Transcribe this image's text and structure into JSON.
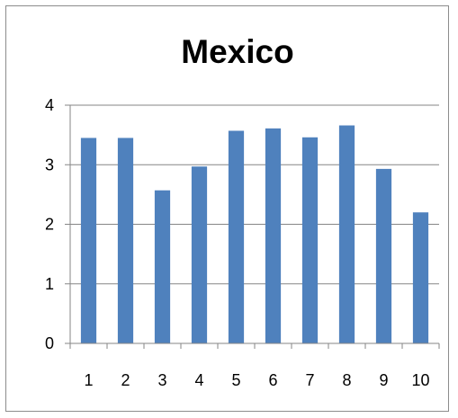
{
  "chart_data": {
    "type": "bar",
    "title": "Mexico",
    "categories": [
      "1",
      "2",
      "3",
      "4",
      "5",
      "6",
      "7",
      "8",
      "9",
      "10"
    ],
    "series": [
      {
        "values": [
          3.45,
          3.45,
          2.57,
          2.97,
          3.57,
          3.61,
          3.46,
          3.66,
          2.93,
          2.2
        ],
        "color": "#4f81bd"
      }
    ],
    "xlabel": "",
    "ylabel": "",
    "ylim": [
      0,
      4
    ],
    "yticks": [
      "0",
      "1",
      "2",
      "3",
      "4"
    ],
    "grid": true,
    "legend": "none"
  }
}
